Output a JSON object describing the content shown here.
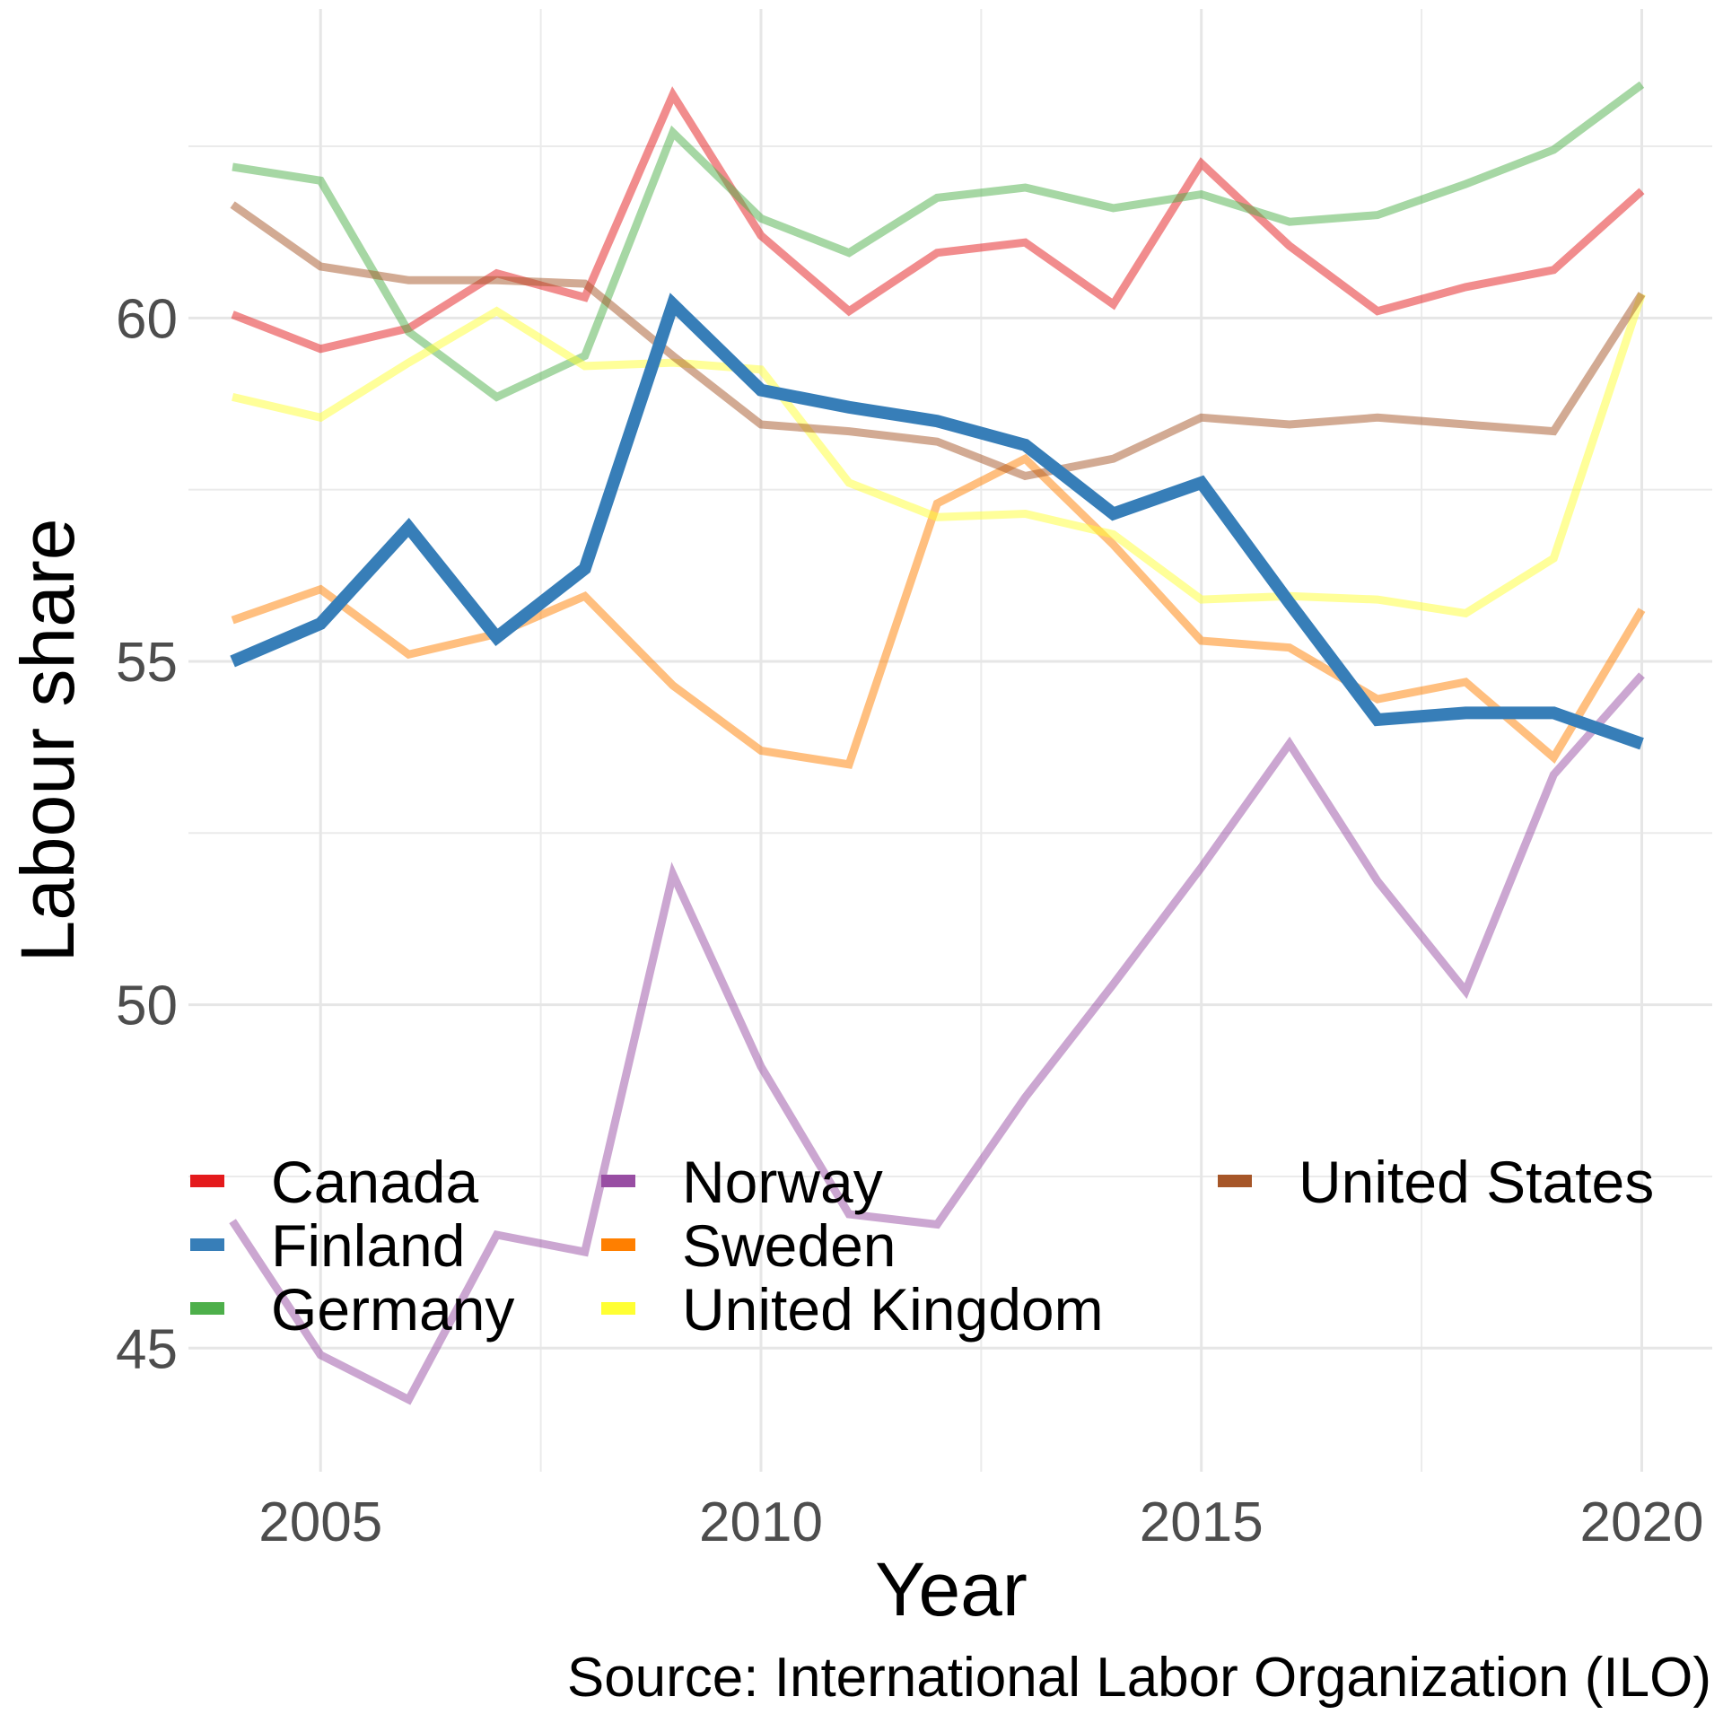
{
  "chart_data": {
    "type": "line",
    "title": "",
    "xlabel": "Year",
    "ylabel": "Labour share",
    "caption": "Source: International Labor Organization (ILO)",
    "xlim": [
      2003.5,
      2020.8
    ],
    "ylim": [
      43.2,
      64.5
    ],
    "x_ticks": [
      2005,
      2010,
      2015,
      2020
    ],
    "y_ticks": [
      45,
      50,
      55,
      60
    ],
    "x": [
      2004,
      2005,
      2006,
      2007,
      2008,
      2009,
      2010,
      2011,
      2012,
      2013,
      2014,
      2015,
      2016,
      2017,
      2018,
      2019,
      2020
    ],
    "series": [
      {
        "name": "Canada",
        "color": "#e41a1c",
        "values": [
          60.05,
          59.55,
          59.85,
          60.65,
          60.3,
          63.25,
          61.2,
          60.1,
          60.95,
          61.1,
          60.2,
          62.25,
          61.05,
          60.1,
          60.45,
          60.7,
          61.85
        ]
      },
      {
        "name": "Germany",
        "color": "#4daf4a",
        "values": [
          62.2,
          62.0,
          59.8,
          58.85,
          59.45,
          62.7,
          61.45,
          60.95,
          61.75,
          61.9,
          61.6,
          61.8,
          61.4,
          61.5,
          61.95,
          62.45,
          63.4
        ]
      },
      {
        "name": "Norway",
        "color": "#984ea3",
        "values": [
          46.85,
          44.9,
          44.25,
          46.65,
          46.4,
          51.9,
          49.1,
          46.95,
          46.8,
          48.65,
          50.3,
          52.0,
          53.8,
          51.8,
          50.2,
          53.35,
          54.8
        ]
      },
      {
        "name": "Sweden",
        "color": "#ff7f00",
        "values": [
          55.6,
          56.05,
          55.1,
          55.4,
          55.95,
          54.65,
          53.7,
          53.5,
          57.3,
          57.95,
          56.7,
          55.3,
          55.2,
          54.45,
          54.7,
          53.6,
          55.75
        ]
      },
      {
        "name": "United Kingdom",
        "color": "#ffff33",
        "values": [
          58.85,
          58.55,
          59.35,
          60.1,
          59.3,
          59.35,
          59.25,
          57.6,
          57.1,
          57.15,
          56.85,
          55.9,
          55.95,
          55.9,
          55.7,
          56.5,
          60.35
        ]
      },
      {
        "name": "United States",
        "color": "#a65628",
        "values": [
          61.65,
          60.75,
          60.55,
          60.55,
          60.5,
          59.45,
          58.45,
          58.35,
          58.2,
          57.7,
          57.95,
          58.55,
          58.45,
          58.55,
          58.45,
          58.35,
          60.35
        ]
      },
      {
        "name": "Finland",
        "color": "#377eb8",
        "highlight": true,
        "values": [
          55.0,
          55.55,
          56.95,
          55.35,
          56.35,
          60.2,
          58.95,
          58.7,
          58.5,
          58.15,
          57.15,
          57.6,
          55.85,
          54.15,
          54.25,
          54.25,
          53.8
        ]
      }
    ],
    "legend": [
      {
        "name": "Canada",
        "color": "#e41a1c"
      },
      {
        "name": "Finland",
        "color": "#377eb8"
      },
      {
        "name": "Germany",
        "color": "#4daf4a"
      },
      {
        "name": "Norway",
        "color": "#984ea3"
      },
      {
        "name": "Sweden",
        "color": "#ff7f00"
      },
      {
        "name": "United Kingdom",
        "color": "#ffff33"
      },
      {
        "name": "United States",
        "color": "#a65628"
      }
    ]
  }
}
